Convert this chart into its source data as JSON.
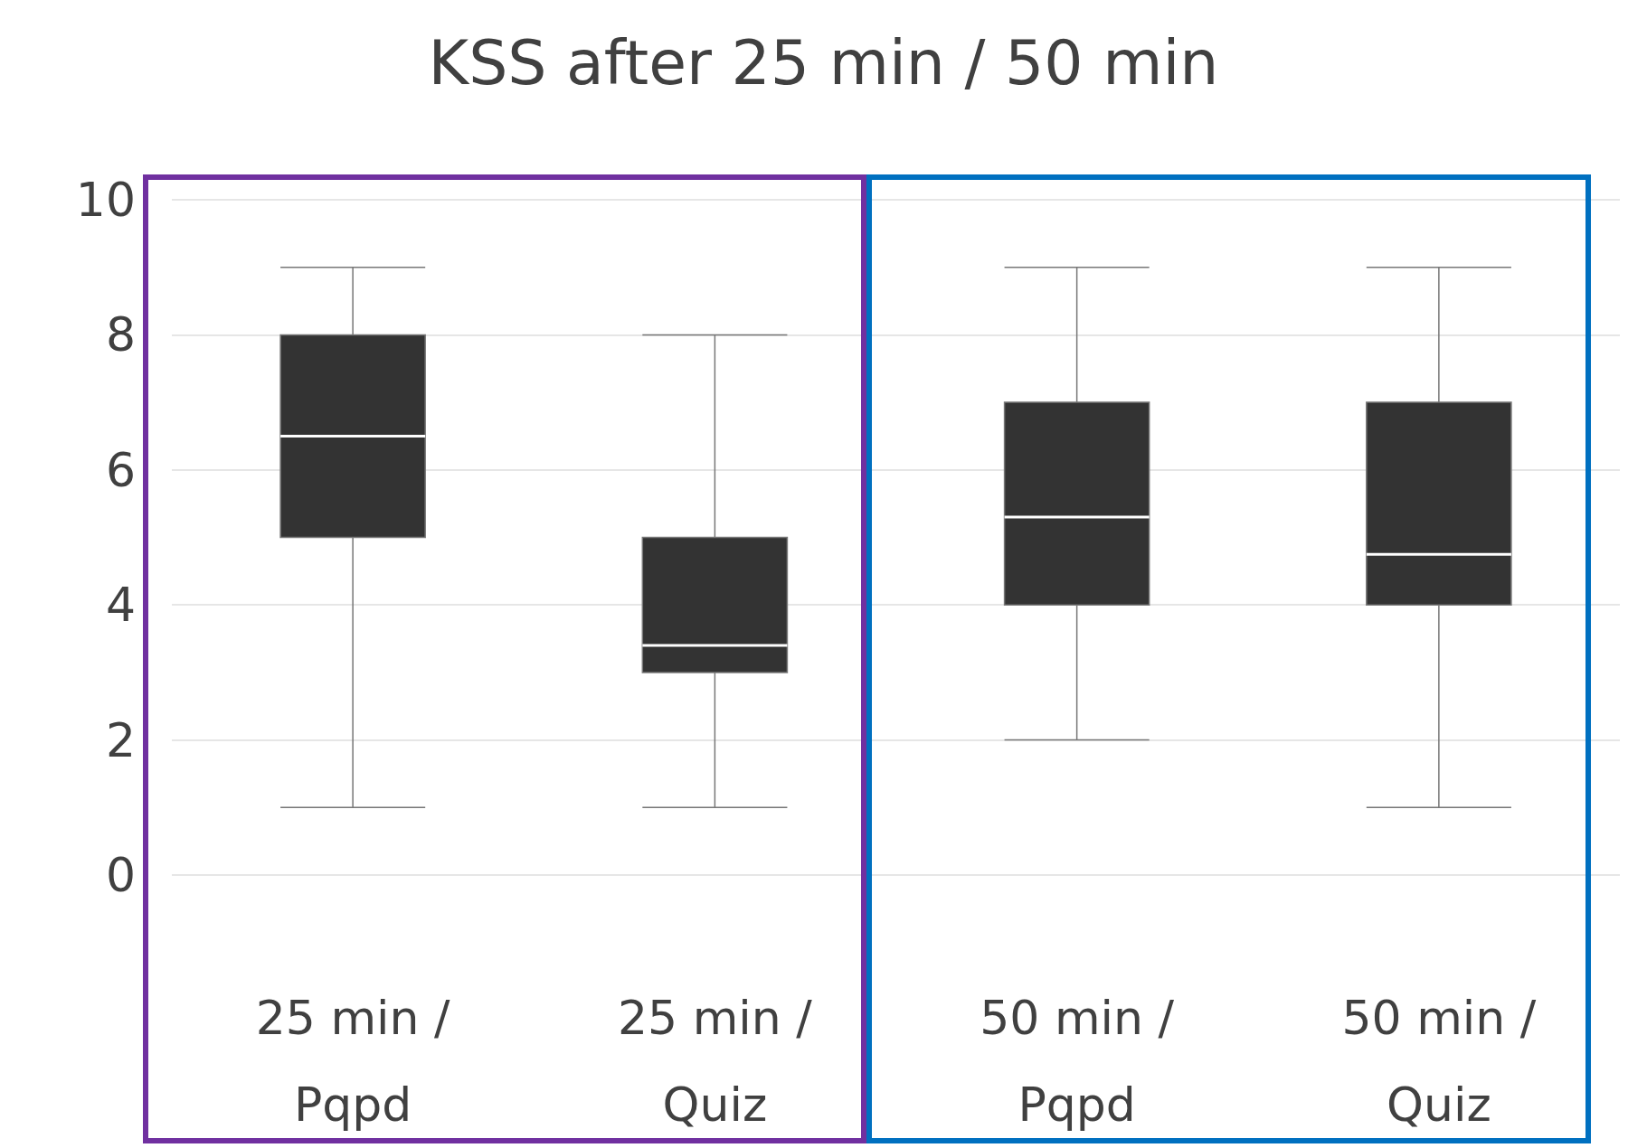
{
  "chart_data": {
    "type": "box",
    "title": "KSS after 25 min / 50 min",
    "categories": [
      "25 min / Pqpd",
      "25 min / Quiz",
      "50 min / Pqpd",
      "50 min / Quiz"
    ],
    "boxes": [
      {
        "low": 1,
        "q1": 5,
        "median": 6.5,
        "q3": 8,
        "high": 9
      },
      {
        "low": 1,
        "q1": 3,
        "median": 3.4,
        "q3": 5,
        "high": 8
      },
      {
        "low": 2,
        "q1": 4,
        "median": 5.3,
        "q3": 7,
        "high": 9
      },
      {
        "low": 1,
        "q1": 4,
        "median": 4.75,
        "q3": 7,
        "high": 9
      }
    ],
    "color": "#333333",
    "ylim": [
      0,
      10
    ],
    "yticks": [
      0,
      2,
      4,
      6,
      8,
      10
    ],
    "grid": "y"
  }
}
